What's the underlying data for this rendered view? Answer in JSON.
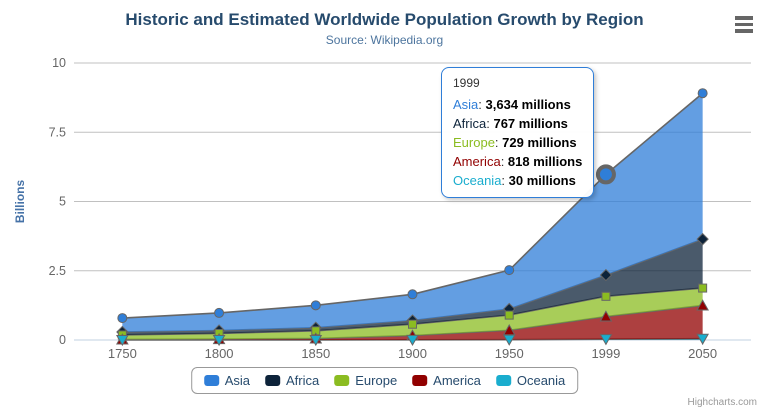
{
  "header": {
    "title": "Historic and Estimated Worldwide Population Growth by Region",
    "subtitle": "Source: Wikipedia.org"
  },
  "chart_data": {
    "type": "area",
    "stacking": "normal",
    "title": "Historic and Estimated Worldwide Population Growth by Region",
    "subtitle": "Source: Wikipedia.org",
    "categories": [
      "1750",
      "1800",
      "1850",
      "1900",
      "1950",
      "1999",
      "2050"
    ],
    "xlabel": "",
    "ylabel": "Billions",
    "ylim": [
      0,
      10
    ],
    "yticks": [
      0,
      2.5,
      5,
      7.5,
      10
    ],
    "ytick_labels": [
      "0",
      "2.5",
      "5",
      "7.5",
      "10"
    ],
    "values_unit": "millions",
    "grid": true,
    "legend_position": "bottom",
    "series": [
      {
        "name": "Asia",
        "color": "#2f7ed8",
        "marker": "circle",
        "values": [
          502,
          635,
          809,
          947,
          1402,
          3634,
          5268
        ]
      },
      {
        "name": "Africa",
        "color": "#0d233a",
        "marker": "diamond",
        "values": [
          106,
          107,
          111,
          133,
          221,
          767,
          1766
        ]
      },
      {
        "name": "Europe",
        "color": "#8bbc21",
        "marker": "square",
        "values": [
          163,
          203,
          276,
          408,
          547,
          729,
          628
        ]
      },
      {
        "name": "America",
        "color": "#910000",
        "marker": "triangle",
        "values": [
          18,
          31,
          54,
          156,
          339,
          818,
          1201
        ]
      },
      {
        "name": "Oceania",
        "color": "#1aadce",
        "marker": "triangle-down",
        "values": [
          2,
          2,
          2,
          6,
          13,
          30,
          46
        ]
      }
    ]
  },
  "hover": {
    "series": "Asia",
    "category": "1999",
    "category_index": 5
  },
  "tooltip": {
    "header": "1999",
    "rows": [
      {
        "label": "Asia",
        "color": "#2f7ed8",
        "value": "3,634 millions"
      },
      {
        "label": "Africa",
        "color": "#0d233a",
        "value": "767 millions"
      },
      {
        "label": "Europe",
        "color": "#8bbc21",
        "value": "729 millions"
      },
      {
        "label": "America",
        "color": "#910000",
        "value": "818 millions"
      },
      {
        "label": "Oceania",
        "color": "#1aadce",
        "value": "30 millions"
      }
    ]
  },
  "credits": {
    "label": "Highcharts.com"
  },
  "colors": {
    "title_text": "#274b6d",
    "subtitle_text": "#4d759e",
    "axis_label": "#666666",
    "y_axis_title": "#4572a7",
    "gridline": "#c0c0c0",
    "axis_line": "#c0d0e0",
    "series_outline": "#666666",
    "tooltip_border": "#2f7ed8",
    "legend_text": "#274b6d"
  }
}
